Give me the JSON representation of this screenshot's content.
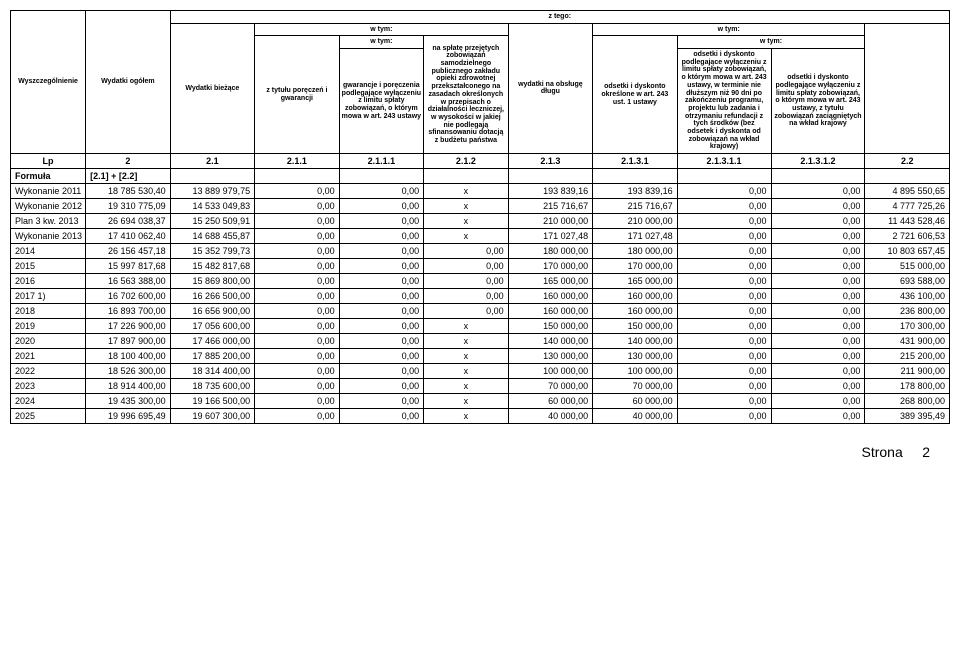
{
  "header": {
    "col1": "Wyszczególnienie",
    "col2": "Wydatki ogółem",
    "ztego": "z tego:",
    "col3": "Wydatki bieżące",
    "wtym": "w tym:",
    "col4": "z tytułu poręczeń i gwarancji",
    "col5": "gwarancje i poręczenia podlegające wyłączeniu z limitu spłaty zobowiązań, o którym mowa w art. 243 ustawy",
    "col6": "na spłatę przejętych zobowiązań samodzielnego publicznego zakładu opieki zdrowotnej przekształconego na zasadach określonych w przepisach o działalności leczniczej, w wysokości w jakiej nie podlegają sfinansowaniu dotacją z budżetu państwa",
    "col7": "wydatki na obsługę długu",
    "col8": "odsetki i dyskonto określone w art. 243 ust. 1 ustawy",
    "col9": "odsetki i dyskonto podlegające wyłączeniu z limitu spłaty zobowiązań, o którym mowa w art. 243 ustawy, w terminie nie dłuższym niż 90 dni po zakończeniu programu, projektu lub zadania i otrzymaniu refundacji z tych środków (bez odsetek i dyskonta od zobowiązań na wkład krajowy)",
    "col10": "odsetki i dyskonto podlegające wyłączeniu z limitu spłaty zobowiązań, o którym mowa w art. 243 ustawy, z tytułu zobowiązań zaciągniętych na wkład krajowy",
    "col11_spacer": ""
  },
  "lpRow": {
    "c1": "Lp",
    "c2": "2",
    "c3": "2.1",
    "c4": "2.1.1",
    "c5": "2.1.1.1",
    "c6": "2.1.2",
    "c7": "2.1.3",
    "c8": "2.1.3.1",
    "c9": "2.1.3.1.1",
    "c10": "2.1.3.1.2",
    "c11": "2.2"
  },
  "formula": {
    "label": "Formuła",
    "c2": "[2.1] + [2.2]"
  },
  "rows": [
    {
      "label": "Wykonanie 2011",
      "v": [
        "18 785 530,40",
        "13 889 979,75",
        "0,00",
        "0,00",
        "x",
        "193 839,16",
        "193 839,16",
        "0,00",
        "0,00",
        "4 895 550,65"
      ]
    },
    {
      "label": "Wykonanie 2012",
      "v": [
        "19 310 775,09",
        "14 533 049,83",
        "0,00",
        "0,00",
        "x",
        "215 716,67",
        "215 716,67",
        "0,00",
        "0,00",
        "4 777 725,26"
      ]
    },
    {
      "label": "Plan 3 kw. 2013",
      "v": [
        "26 694 038,37",
        "15 250 509,91",
        "0,00",
        "0,00",
        "x",
        "210 000,00",
        "210 000,00",
        "0,00",
        "0,00",
        "11 443 528,46"
      ]
    },
    {
      "label": "Wykonanie 2013",
      "v": [
        "17 410 062,40",
        "14 688 455,87",
        "0,00",
        "0,00",
        "x",
        "171 027,48",
        "171 027,48",
        "0,00",
        "0,00",
        "2 721 606,53"
      ]
    },
    {
      "label": "2014",
      "v": [
        "26 156 457,18",
        "15 352 799,73",
        "0,00",
        "0,00",
        "0,00",
        "180 000,00",
        "180 000,00",
        "0,00",
        "0,00",
        "10 803 657,45"
      ]
    },
    {
      "label": "2015",
      "v": [
        "15 997 817,68",
        "15 482 817,68",
        "0,00",
        "0,00",
        "0,00",
        "170 000,00",
        "170 000,00",
        "0,00",
        "0,00",
        "515 000,00"
      ]
    },
    {
      "label": "2016",
      "v": [
        "16 563 388,00",
        "15 869 800,00",
        "0,00",
        "0,00",
        "0,00",
        "165 000,00",
        "165 000,00",
        "0,00",
        "0,00",
        "693 588,00"
      ]
    },
    {
      "label": "2017 1)",
      "v": [
        "16 702 600,00",
        "16 266 500,00",
        "0,00",
        "0,00",
        "0,00",
        "160 000,00",
        "160 000,00",
        "0,00",
        "0,00",
        "436 100,00"
      ]
    },
    {
      "label": "2018",
      "v": [
        "16 893 700,00",
        "16 656 900,00",
        "0,00",
        "0,00",
        "0,00",
        "160 000,00",
        "160 000,00",
        "0,00",
        "0,00",
        "236 800,00"
      ]
    },
    {
      "label": "2019",
      "v": [
        "17 226 900,00",
        "17 056 600,00",
        "0,00",
        "0,00",
        "x",
        "150 000,00",
        "150 000,00",
        "0,00",
        "0,00",
        "170 300,00"
      ]
    },
    {
      "label": "2020",
      "v": [
        "17 897 900,00",
        "17 466 000,00",
        "0,00",
        "0,00",
        "x",
        "140 000,00",
        "140 000,00",
        "0,00",
        "0,00",
        "431 900,00"
      ]
    },
    {
      "label": "2021",
      "v": [
        "18 100 400,00",
        "17 885 200,00",
        "0,00",
        "0,00",
        "x",
        "130 000,00",
        "130 000,00",
        "0,00",
        "0,00",
        "215 200,00"
      ]
    },
    {
      "label": "2022",
      "v": [
        "18 526 300,00",
        "18 314 400,00",
        "0,00",
        "0,00",
        "x",
        "100 000,00",
        "100 000,00",
        "0,00",
        "0,00",
        "211 900,00"
      ]
    },
    {
      "label": "2023",
      "v": [
        "18 914 400,00",
        "18 735 600,00",
        "0,00",
        "0,00",
        "x",
        "70 000,00",
        "70 000,00",
        "0,00",
        "0,00",
        "178 800,00"
      ]
    },
    {
      "label": "2024",
      "v": [
        "19 435 300,00",
        "19 166 500,00",
        "0,00",
        "0,00",
        "x",
        "60 000,00",
        "60 000,00",
        "0,00",
        "0,00",
        "268 800,00"
      ]
    },
    {
      "label": "2025",
      "v": [
        "19 996 695,49",
        "19 607 300,00",
        "0,00",
        "0,00",
        "x",
        "40 000,00",
        "40 000,00",
        "0,00",
        "0,00",
        "389 395,49"
      ]
    }
  ],
  "footer": {
    "page_label": "Strona",
    "page_num": "2"
  },
  "style": {
    "col_widths_pct": [
      8,
      9,
      9,
      9,
      9,
      9,
      9,
      9,
      10,
      10,
      9
    ]
  }
}
